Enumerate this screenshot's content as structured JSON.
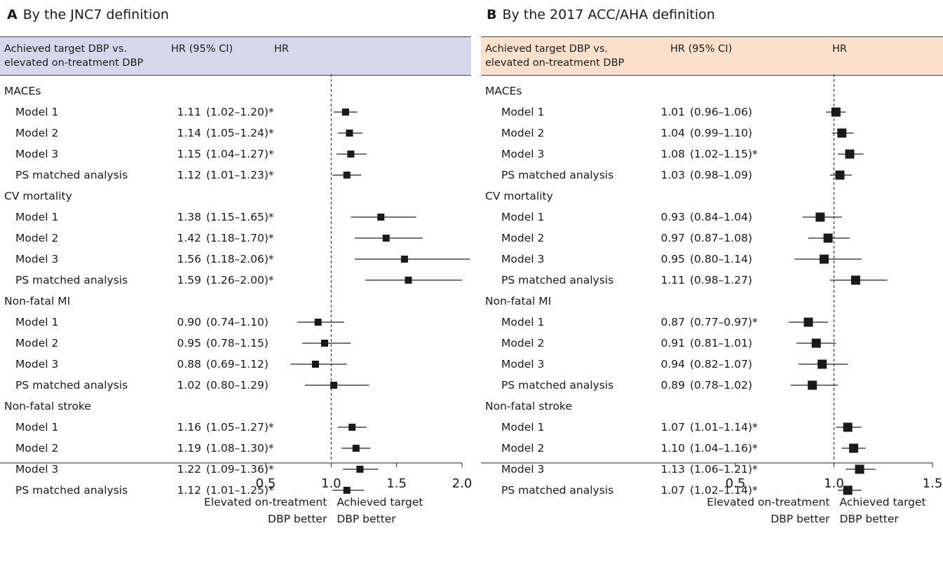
{
  "chart_data": [
    {
      "type": "forest",
      "panel_letter": "A",
      "title": "By the JNC7 definition",
      "header": {
        "col1": [
          "Achieved target DBP vs.",
          "elevated on-treatment DBP"
        ],
        "col2": "HR (95% CI)",
        "col3": "HR"
      },
      "header_bg": "#d5d8ea",
      "xlim": [
        0.5,
        2.05
      ],
      "ticks": [
        0.5,
        1.0,
        1.5,
        2.0
      ],
      "tick_labels": [
        "0.5",
        "1.0",
        "1.5",
        "2.0"
      ],
      "reference_line": 1.0,
      "xlabel_left": [
        "Elevated on-treatment",
        "DBP better"
      ],
      "xlabel_right": [
        "Achieved target",
        "DBP better"
      ],
      "groups": [
        {
          "name": "MACEs",
          "rows": [
            {
              "label": "Model 1",
              "hr": 1.11,
              "lo": 1.02,
              "hi": 1.2,
              "hr_text": "1.11",
              "ci_text": "(1.02–1.20)*"
            },
            {
              "label": "Model 2",
              "hr": 1.14,
              "lo": 1.05,
              "hi": 1.24,
              "hr_text": "1.14",
              "ci_text": "(1.05–1.24)*"
            },
            {
              "label": "Model 3",
              "hr": 1.15,
              "lo": 1.04,
              "hi": 1.27,
              "hr_text": "1.15",
              "ci_text": "(1.04–1.27)*"
            },
            {
              "label": "PS matched analysis",
              "hr": 1.12,
              "lo": 1.01,
              "hi": 1.23,
              "hr_text": "1.12",
              "ci_text": "(1.01–1.23)*"
            }
          ]
        },
        {
          "name": "CV mortality",
          "rows": [
            {
              "label": "Model 1",
              "hr": 1.38,
              "lo": 1.15,
              "hi": 1.65,
              "hr_text": "1.38",
              "ci_text": "(1.15–1.65)*"
            },
            {
              "label": "Model 2",
              "hr": 1.42,
              "lo": 1.18,
              "hi": 1.7,
              "hr_text": "1.42",
              "ci_text": "(1.18–1.70)*"
            },
            {
              "label": "Model 3",
              "hr": 1.56,
              "lo": 1.18,
              "hi": 2.06,
              "hr_text": "1.56",
              "ci_text": "(1.18–2.06)*"
            },
            {
              "label": "PS matched analysis",
              "hr": 1.59,
              "lo": 1.26,
              "hi": 2.0,
              "hr_text": "1.59",
              "ci_text": "(1.26–2.00)*"
            }
          ]
        },
        {
          "name": "Non-fatal MI",
          "rows": [
            {
              "label": "Model 1",
              "hr": 0.9,
              "lo": 0.74,
              "hi": 1.1,
              "hr_text": "0.90",
              "ci_text": "(0.74–1.10)"
            },
            {
              "label": "Model 2",
              "hr": 0.95,
              "lo": 0.78,
              "hi": 1.15,
              "hr_text": "0.95",
              "ci_text": "(0.78–1.15)"
            },
            {
              "label": "Model 3",
              "hr": 0.88,
              "lo": 0.69,
              "hi": 1.12,
              "hr_text": "0.88",
              "ci_text": "(0.69–1.12)"
            },
            {
              "label": "PS matched analysis",
              "hr": 1.02,
              "lo": 0.8,
              "hi": 1.29,
              "hr_text": "1.02",
              "ci_text": "(0.80–1.29)"
            }
          ]
        },
        {
          "name": "Non-fatal stroke",
          "rows": [
            {
              "label": "Model 1",
              "hr": 1.16,
              "lo": 1.05,
              "hi": 1.27,
              "hr_text": "1.16",
              "ci_text": "(1.05–1.27)*"
            },
            {
              "label": "Model 2",
              "hr": 1.19,
              "lo": 1.08,
              "hi": 1.3,
              "hr_text": "1.19",
              "ci_text": "(1.08–1.30)*"
            },
            {
              "label": "Model 3",
              "hr": 1.22,
              "lo": 1.09,
              "hi": 1.36,
              "hr_text": "1.22",
              "ci_text": "(1.09–1.36)*"
            },
            {
              "label": "PS matched analysis",
              "hr": 1.12,
              "lo": 1.01,
              "hi": 1.25,
              "hr_text": "1.12",
              "ci_text": "(1.01–1.25)*"
            }
          ]
        }
      ]
    },
    {
      "type": "forest",
      "panel_letter": "B",
      "title": "By the 2017 ACC/AHA definition",
      "header": {
        "col1": [
          "Achieved target DBP vs.",
          "elevated on-treatment DBP"
        ],
        "col2": "HR (95% CI)",
        "col3": "HR"
      },
      "header_bg": "#fbe0cb",
      "xlim": [
        0.5,
        1.5
      ],
      "ticks": [
        0.5,
        1.0,
        1.5
      ],
      "tick_labels": [
        "0.5",
        "1.0",
        "1.5"
      ],
      "reference_line": 1.0,
      "xlabel_left": [
        "Elevated on-treatment",
        "DBP better"
      ],
      "xlabel_right": [
        "Achieved target",
        "DBP better"
      ],
      "groups": [
        {
          "name": "MACEs",
          "rows": [
            {
              "label": "Model 1",
              "hr": 1.01,
              "lo": 0.96,
              "hi": 1.06,
              "hr_text": "1.01",
              "ci_text": "(0.96–1.06)"
            },
            {
              "label": "Model 2",
              "hr": 1.04,
              "lo": 0.99,
              "hi": 1.1,
              "hr_text": "1.04",
              "ci_text": "(0.99–1.10)"
            },
            {
              "label": "Model 3",
              "hr": 1.08,
              "lo": 1.02,
              "hi": 1.15,
              "hr_text": "1.08",
              "ci_text": "(1.02–1.15)*"
            },
            {
              "label": "PS matched analysis",
              "hr": 1.03,
              "lo": 0.98,
              "hi": 1.09,
              "hr_text": "1.03",
              "ci_text": "(0.98–1.09)"
            }
          ]
        },
        {
          "name": "CV mortality",
          "rows": [
            {
              "label": "Model 1",
              "hr": 0.93,
              "lo": 0.84,
              "hi": 1.04,
              "hr_text": "0.93",
              "ci_text": "(0.84–1.04)"
            },
            {
              "label": "Model 2",
              "hr": 0.97,
              "lo": 0.87,
              "hi": 1.08,
              "hr_text": "0.97",
              "ci_text": "(0.87–1.08)"
            },
            {
              "label": "Model 3",
              "hr": 0.95,
              "lo": 0.8,
              "hi": 1.14,
              "hr_text": "0.95",
              "ci_text": "(0.80–1.14)"
            },
            {
              "label": "PS matched analysis",
              "hr": 1.11,
              "lo": 0.98,
              "hi": 1.27,
              "hr_text": "1.11",
              "ci_text": "(0.98–1.27)"
            }
          ]
        },
        {
          "name": "Non-fatal MI",
          "rows": [
            {
              "label": "Model 1",
              "hr": 0.87,
              "lo": 0.77,
              "hi": 0.97,
              "hr_text": "0.87",
              "ci_text": "(0.77–0.97)*"
            },
            {
              "label": "Model 2",
              "hr": 0.91,
              "lo": 0.81,
              "hi": 1.01,
              "hr_text": "0.91",
              "ci_text": "(0.81–1.01)"
            },
            {
              "label": "Model 3",
              "hr": 0.94,
              "lo": 0.82,
              "hi": 1.07,
              "hr_text": "0.94",
              "ci_text": "(0.82–1.07)"
            },
            {
              "label": "PS matched analysis",
              "hr": 0.89,
              "lo": 0.78,
              "hi": 1.02,
              "hr_text": "0.89",
              "ci_text": "(0.78–1.02)"
            }
          ]
        },
        {
          "name": "Non-fatal stroke",
          "rows": [
            {
              "label": "Model 1",
              "hr": 1.07,
              "lo": 1.01,
              "hi": 1.14,
              "hr_text": "1.07",
              "ci_text": "(1.01–1.14)*"
            },
            {
              "label": "Model 2",
              "hr": 1.1,
              "lo": 1.04,
              "hi": 1.16,
              "hr_text": "1.10",
              "ci_text": "(1.04–1.16)*"
            },
            {
              "label": "Model 3",
              "hr": 1.13,
              "lo": 1.06,
              "hi": 1.21,
              "hr_text": "1.13",
              "ci_text": "(1.06–1.21)*"
            },
            {
              "label": "PS matched analysis",
              "hr": 1.07,
              "lo": 1.02,
              "hi": 1.14,
              "hr_text": "1.07",
              "ci_text": "(1.02–1.14)*"
            }
          ]
        }
      ]
    }
  ]
}
